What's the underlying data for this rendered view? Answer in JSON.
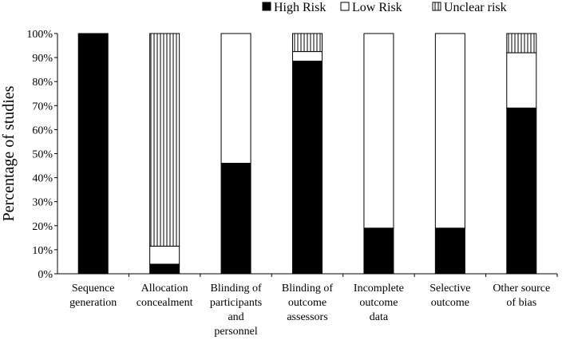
{
  "chart_data": {
    "type": "bar",
    "stacked": true,
    "percent_stacked": true,
    "title": "",
    "xlabel": "",
    "ylabel": "Percentage of studies",
    "ylim": [
      0,
      100
    ],
    "yticks": [
      "0%",
      "10%",
      "20%",
      "30%",
      "40%",
      "50%",
      "60%",
      "70%",
      "80%",
      "90%",
      "100%"
    ],
    "categories": [
      [
        "Sequence",
        "generation"
      ],
      [
        "Allocation",
        "concealment"
      ],
      [
        "Blinding of",
        "participants",
        "and",
        "personnel"
      ],
      [
        "Blinding of",
        "outcome",
        "assessors"
      ],
      [
        "Incomplete",
        "outcome",
        "data"
      ],
      [
        "Selective",
        "outcome"
      ],
      [
        "Other source",
        "of bias"
      ]
    ],
    "series": [
      {
        "name": "High Risk",
        "fill": "#000000",
        "values": [
          100,
          4,
          46,
          88.5,
          19,
          19,
          69
        ]
      },
      {
        "name": "Low Risk",
        "fill": "#ffffff",
        "values": [
          0,
          7.5,
          54,
          4,
          81,
          81,
          23
        ]
      },
      {
        "name": "Unclear risk",
        "fill": "hatch-vertical",
        "values": [
          0,
          88.5,
          0,
          7.5,
          0,
          0,
          8
        ]
      }
    ],
    "legend_position": "top-right",
    "grid": false
  }
}
